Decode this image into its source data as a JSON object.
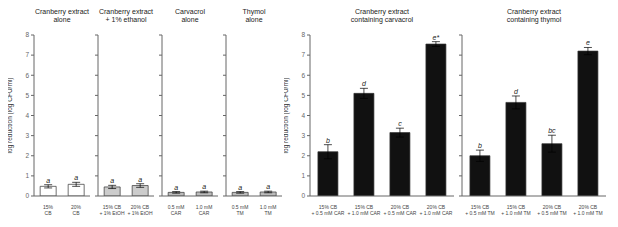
{
  "chart_data": [
    {
      "type": "bar",
      "title": "Cranberry extract\nalone",
      "categories": [
        "15%\nCB",
        "20%\nCB"
      ],
      "values": [
        0.48,
        0.58
      ],
      "errors": [
        0.08,
        0.1
      ],
      "annotations": [
        "a",
        "a"
      ],
      "colors": [
        "white",
        "white"
      ],
      "ylim": [
        0,
        8
      ],
      "yticks": [
        0,
        1,
        2,
        3,
        4,
        5,
        6,
        7,
        8
      ],
      "ylabel": "log reduction (log CFU/ml)",
      "grid": false
    },
    {
      "type": "bar",
      "title": "Cranberry extract\n+ 1% ethanol",
      "categories": [
        "15% CB\n+ 1% EtOH",
        "20% CB\n+ 1% EtOH"
      ],
      "values": [
        0.45,
        0.52
      ],
      "errors": [
        0.08,
        0.09
      ],
      "annotations": [
        "a",
        "a"
      ],
      "colors": [
        "#cccccc",
        "#cccccc"
      ],
      "ylim": [
        0,
        8
      ],
      "yticks": [
        0,
        1,
        2,
        3,
        4,
        5,
        6,
        7,
        8
      ],
      "tick_labels": "x",
      "grid": false
    },
    {
      "type": "bar",
      "title": "Carvacrol\nalone",
      "categories": [
        "0.5 mM\nCAR",
        "1.0 mM\nCAR"
      ],
      "values": [
        0.18,
        0.2
      ],
      "errors": [
        0.04,
        0.04
      ],
      "annotations": [
        "a",
        "a"
      ],
      "colors": [
        "#bbbbbb",
        "#bbbbbb"
      ],
      "ylim": [
        0,
        8
      ],
      "yticks": [
        0,
        1,
        2,
        3,
        4,
        5,
        6,
        7,
        8
      ],
      "tick_labels": "x",
      "grid": false
    },
    {
      "type": "bar",
      "title": "Thymol\nalone",
      "categories": [
        "0.5 mM\nTM",
        "1.0 mM\nTM"
      ],
      "values": [
        0.18,
        0.2
      ],
      "errors": [
        0.04,
        0.04
      ],
      "annotations": [
        "a",
        "a"
      ],
      "colors": [
        "#bbbbbb",
        "#bbbbbb"
      ],
      "ylim": [
        0,
        8
      ],
      "yticks": [
        0,
        1,
        2,
        3,
        4,
        5,
        6,
        7,
        8
      ],
      "tick_labels": "x",
      "grid": false
    },
    {
      "type": "bar",
      "title": "Cranberry extract\ncontaining carvacrol",
      "categories": [
        "15% CB\n+ 0.5 mM CAR",
        "15% CB\n+ 1.0 mM CAR",
        "20% CB\n+ 0.5 mM CAR",
        "20% CB\n+ 1.0 mM CAR"
      ],
      "values": [
        2.2,
        5.1,
        3.15,
        7.55
      ],
      "errors": [
        0.35,
        0.25,
        0.22,
        0.12
      ],
      "annotations": [
        "b",
        "d",
        "c",
        "e*"
      ],
      "colors": [
        "#111111",
        "#111111",
        "#111111",
        "#111111"
      ],
      "ylim": [
        0,
        8
      ],
      "yticks": [
        0,
        1,
        2,
        3,
        4,
        5,
        6,
        7,
        8
      ],
      "ylabel": "log reduction (log CFU/ml)",
      "grid": false
    },
    {
      "type": "bar",
      "title": "Cranberry extract\ncontaining thymol",
      "categories": [
        "15% CB\n+ 0.5 mM TM",
        "15% CB\n+ 1.0 mM TM",
        "20% CB\n+ 0.5 mM TM",
        "20% CB\n+ 1.0 mM TM"
      ],
      "values": [
        2.0,
        4.65,
        2.6,
        7.2
      ],
      "errors": [
        0.28,
        0.32,
        0.42,
        0.18
      ],
      "annotations": [
        "b",
        "d",
        "bc",
        "e"
      ],
      "colors": [
        "#111111",
        "#111111",
        "#111111",
        "#111111"
      ],
      "ylim": [
        0,
        8
      ],
      "yticks": [
        0,
        1,
        2,
        3,
        4,
        5,
        6,
        7,
        8
      ],
      "tick_labels": "x",
      "grid": false
    }
  ]
}
